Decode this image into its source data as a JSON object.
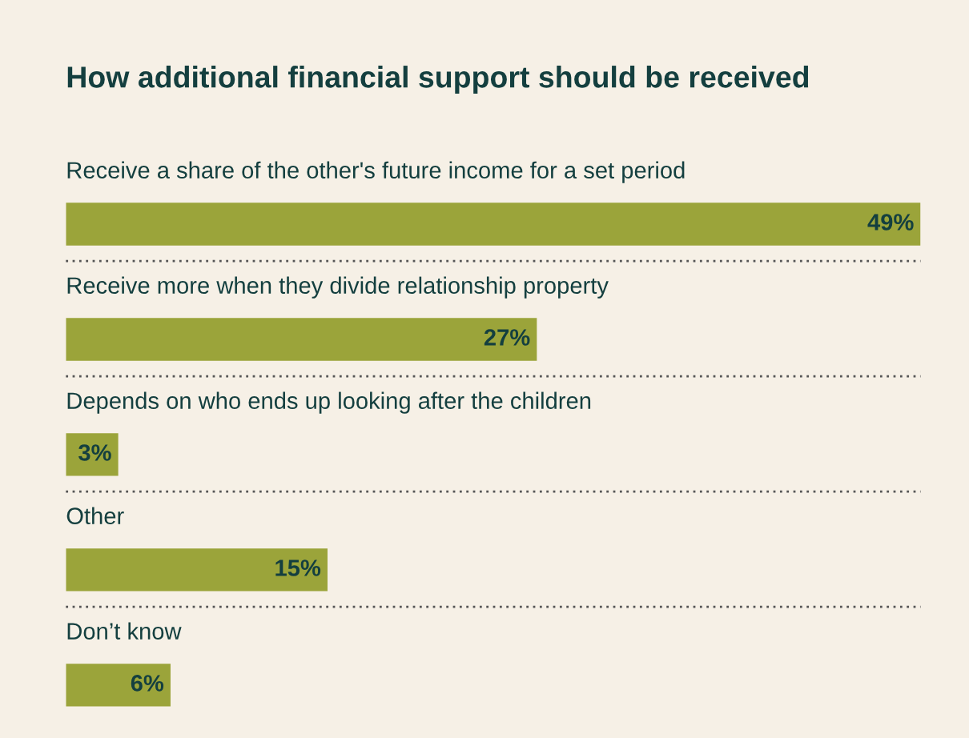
{
  "chart_data": {
    "type": "bar",
    "orientation": "horizontal",
    "title": "How additional financial support should be received",
    "categories": [
      "Receive a share of the other's future income for a set period",
      "Receive more when they divide relationship property",
      "Depends on who ends up looking after the children",
      "Other",
      "Don’t know"
    ],
    "values": [
      49,
      27,
      3,
      15,
      6
    ],
    "value_labels": [
      "49%",
      "27%",
      "3%",
      "15%",
      "6%"
    ],
    "color": "#9ba43a"
  }
}
